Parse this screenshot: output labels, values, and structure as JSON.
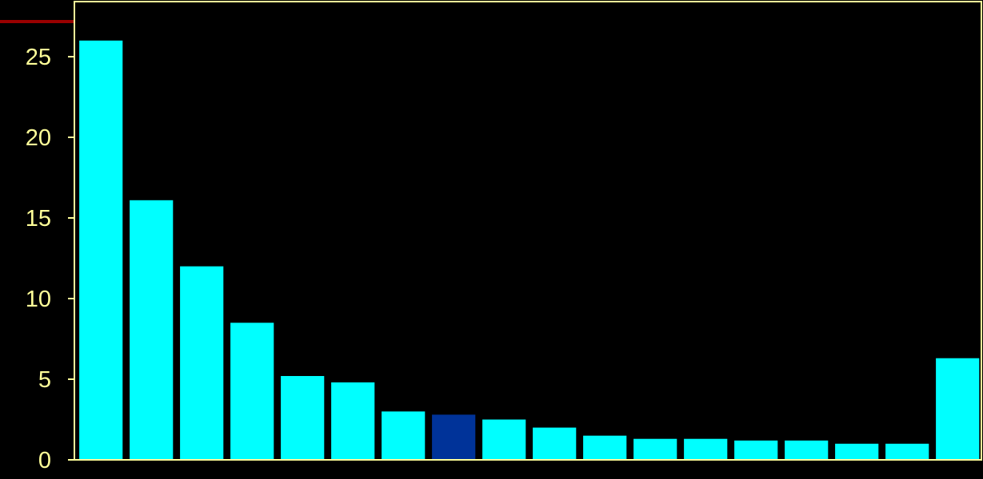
{
  "chart_data": {
    "type": "bar",
    "categories": [
      "",
      "",
      "",
      "",
      "",
      "",
      "",
      "",
      "",
      "",
      "",
      "",
      "",
      "",
      "",
      "",
      "",
      ""
    ],
    "values": [
      26.0,
      16.1,
      12.0,
      8.5,
      5.2,
      4.8,
      3.0,
      2.8,
      2.5,
      2.0,
      1.5,
      1.3,
      1.3,
      1.2,
      1.2,
      1.0,
      1.0,
      6.3
    ],
    "highlight_index": 7,
    "y_ticks": [
      0,
      5,
      10,
      15,
      20,
      25
    ],
    "ylim": [
      0,
      28
    ],
    "grid": false,
    "title": "",
    "xlabel": "",
    "ylabel": ""
  },
  "colors": {
    "background": "#000000",
    "bar": "#00FFFF",
    "bar_highlight": "#003399",
    "axis": "#FFFF99",
    "tick_label": "#FFFF99",
    "accent_line": "#990000"
  }
}
